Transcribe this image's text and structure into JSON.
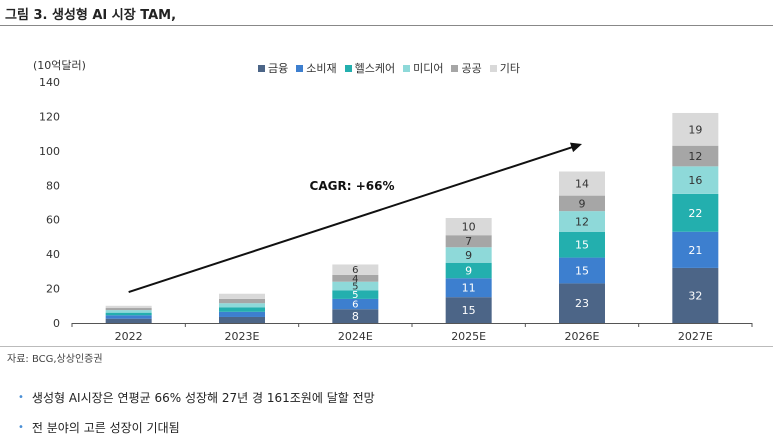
{
  "figure_title": "그림 3. 생성형 AI 시장 TAM,",
  "source": "자료: BCG,상상인증권",
  "bullets": [
    "생성형 AI시장은 연평균 66% 성장해 27년 경 161조원에 달할 전망",
    "전 분야의 고른 성장이 기대됨"
  ],
  "chart_data": {
    "type": "bar",
    "stacked": true,
    "unit_label": "(10억달러)",
    "categories": [
      "2022",
      "2023E",
      "2024E",
      "2025E",
      "2026E",
      "2027E"
    ],
    "ylim": [
      0,
      140
    ],
    "yticks": [
      0,
      20,
      40,
      60,
      80,
      100,
      120,
      140
    ],
    "series": [
      {
        "name": "금융",
        "color": "#4c6587",
        "values": [
          2.5,
          3.5,
          8,
          15,
          23,
          32
        ],
        "labels": [
          "",
          "",
          "8",
          "15",
          "23",
          "32"
        ]
      },
      {
        "name": "소비재",
        "color": "#3d7fcf",
        "values": [
          2,
          3,
          6,
          11,
          15,
          21
        ],
        "labels": [
          "",
          "",
          "6",
          "11",
          "15",
          "21"
        ]
      },
      {
        "name": "헬스케어",
        "color": "#23afae",
        "values": [
          1.5,
          2.5,
          5,
          9,
          15,
          22
        ],
        "labels": [
          "",
          "",
          "5",
          "9",
          "15",
          "22"
        ]
      },
      {
        "name": "미디어",
        "color": "#8ed9d9",
        "values": [
          1.5,
          2.5,
          5,
          9,
          12,
          16
        ],
        "labels": [
          "",
          "",
          "5",
          "9",
          "12",
          "16"
        ]
      },
      {
        "name": "공공",
        "color": "#a6a6a6",
        "values": [
          1.2,
          2.5,
          4,
          7,
          9,
          12
        ],
        "labels": [
          "",
          "",
          "4",
          "7",
          "9",
          "12"
        ]
      },
      {
        "name": "기타",
        "color": "#d9d9d9",
        "values": [
          1.3,
          3,
          6,
          10,
          14,
          19
        ],
        "labels": [
          "",
          "",
          "6",
          "10",
          "14",
          "19"
        ]
      }
    ],
    "annotation": {
      "text": "CAGR: +66%",
      "arrow_from": {
        "x": "2022",
        "y": 18
      },
      "arrow_to": {
        "x": "2026E",
        "y": 104
      }
    }
  }
}
